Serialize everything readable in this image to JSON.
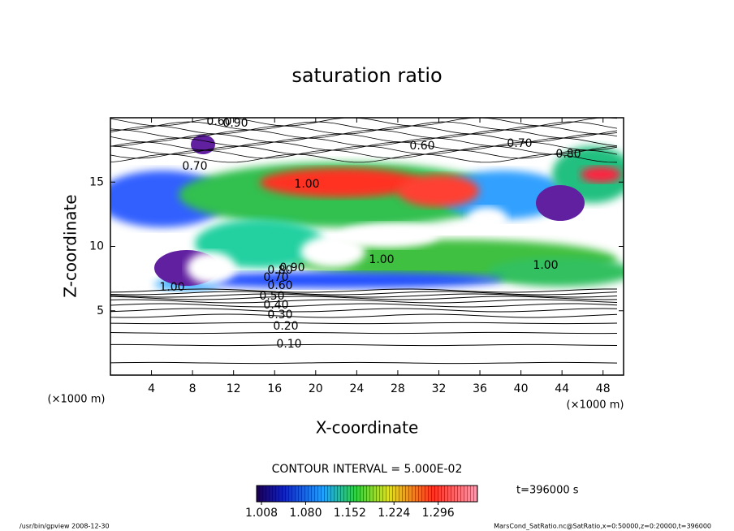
{
  "chart_data": {
    "type": "contour",
    "title": "saturation ratio",
    "x_label": "X-coordinate",
    "y_label": "Z-coordinate",
    "x_unit": "(×1000 m)",
    "y_unit": "(×1000 m)",
    "xlim": [
      0,
      50
    ],
    "xticks": [
      4,
      8,
      12,
      16,
      20,
      24,
      28,
      32,
      36,
      40,
      44,
      48
    ],
    "ylim": [
      0,
      20
    ],
    "yticks": [
      5,
      10,
      15
    ],
    "contour_interval": "CONTOUR INTERVAL = 5.000E-02",
    "contour_labels": [
      "0.10",
      "0.20",
      "0.30",
      "0.40",
      "0.50",
      "0.60",
      "0.70",
      "0.80",
      "0.90",
      "1.00",
      "1.00",
      "1.00",
      "1.00",
      "0.60",
      "0.70",
      "0.80",
      "0.60",
      "0.70",
      "0.90"
    ],
    "colorbar": {
      "clim": [
        1.0,
        1.36
      ],
      "ticks": [
        {
          "value": 1.008,
          "label": "1.008"
        },
        {
          "value": 1.08,
          "label": "1.080"
        },
        {
          "value": 1.152,
          "label": "1.152"
        },
        {
          "value": 1.224,
          "label": "1.224"
        },
        {
          "value": 1.296,
          "label": "1.296"
        }
      ]
    },
    "time_label": "t=396000 s",
    "footer_left": "/usr/bin/gpview  2008-12-30",
    "footer_right": "MarsCond_SatRatio.nc@SatRatio,x=0:50000,z=0:20000,t=396000"
  }
}
